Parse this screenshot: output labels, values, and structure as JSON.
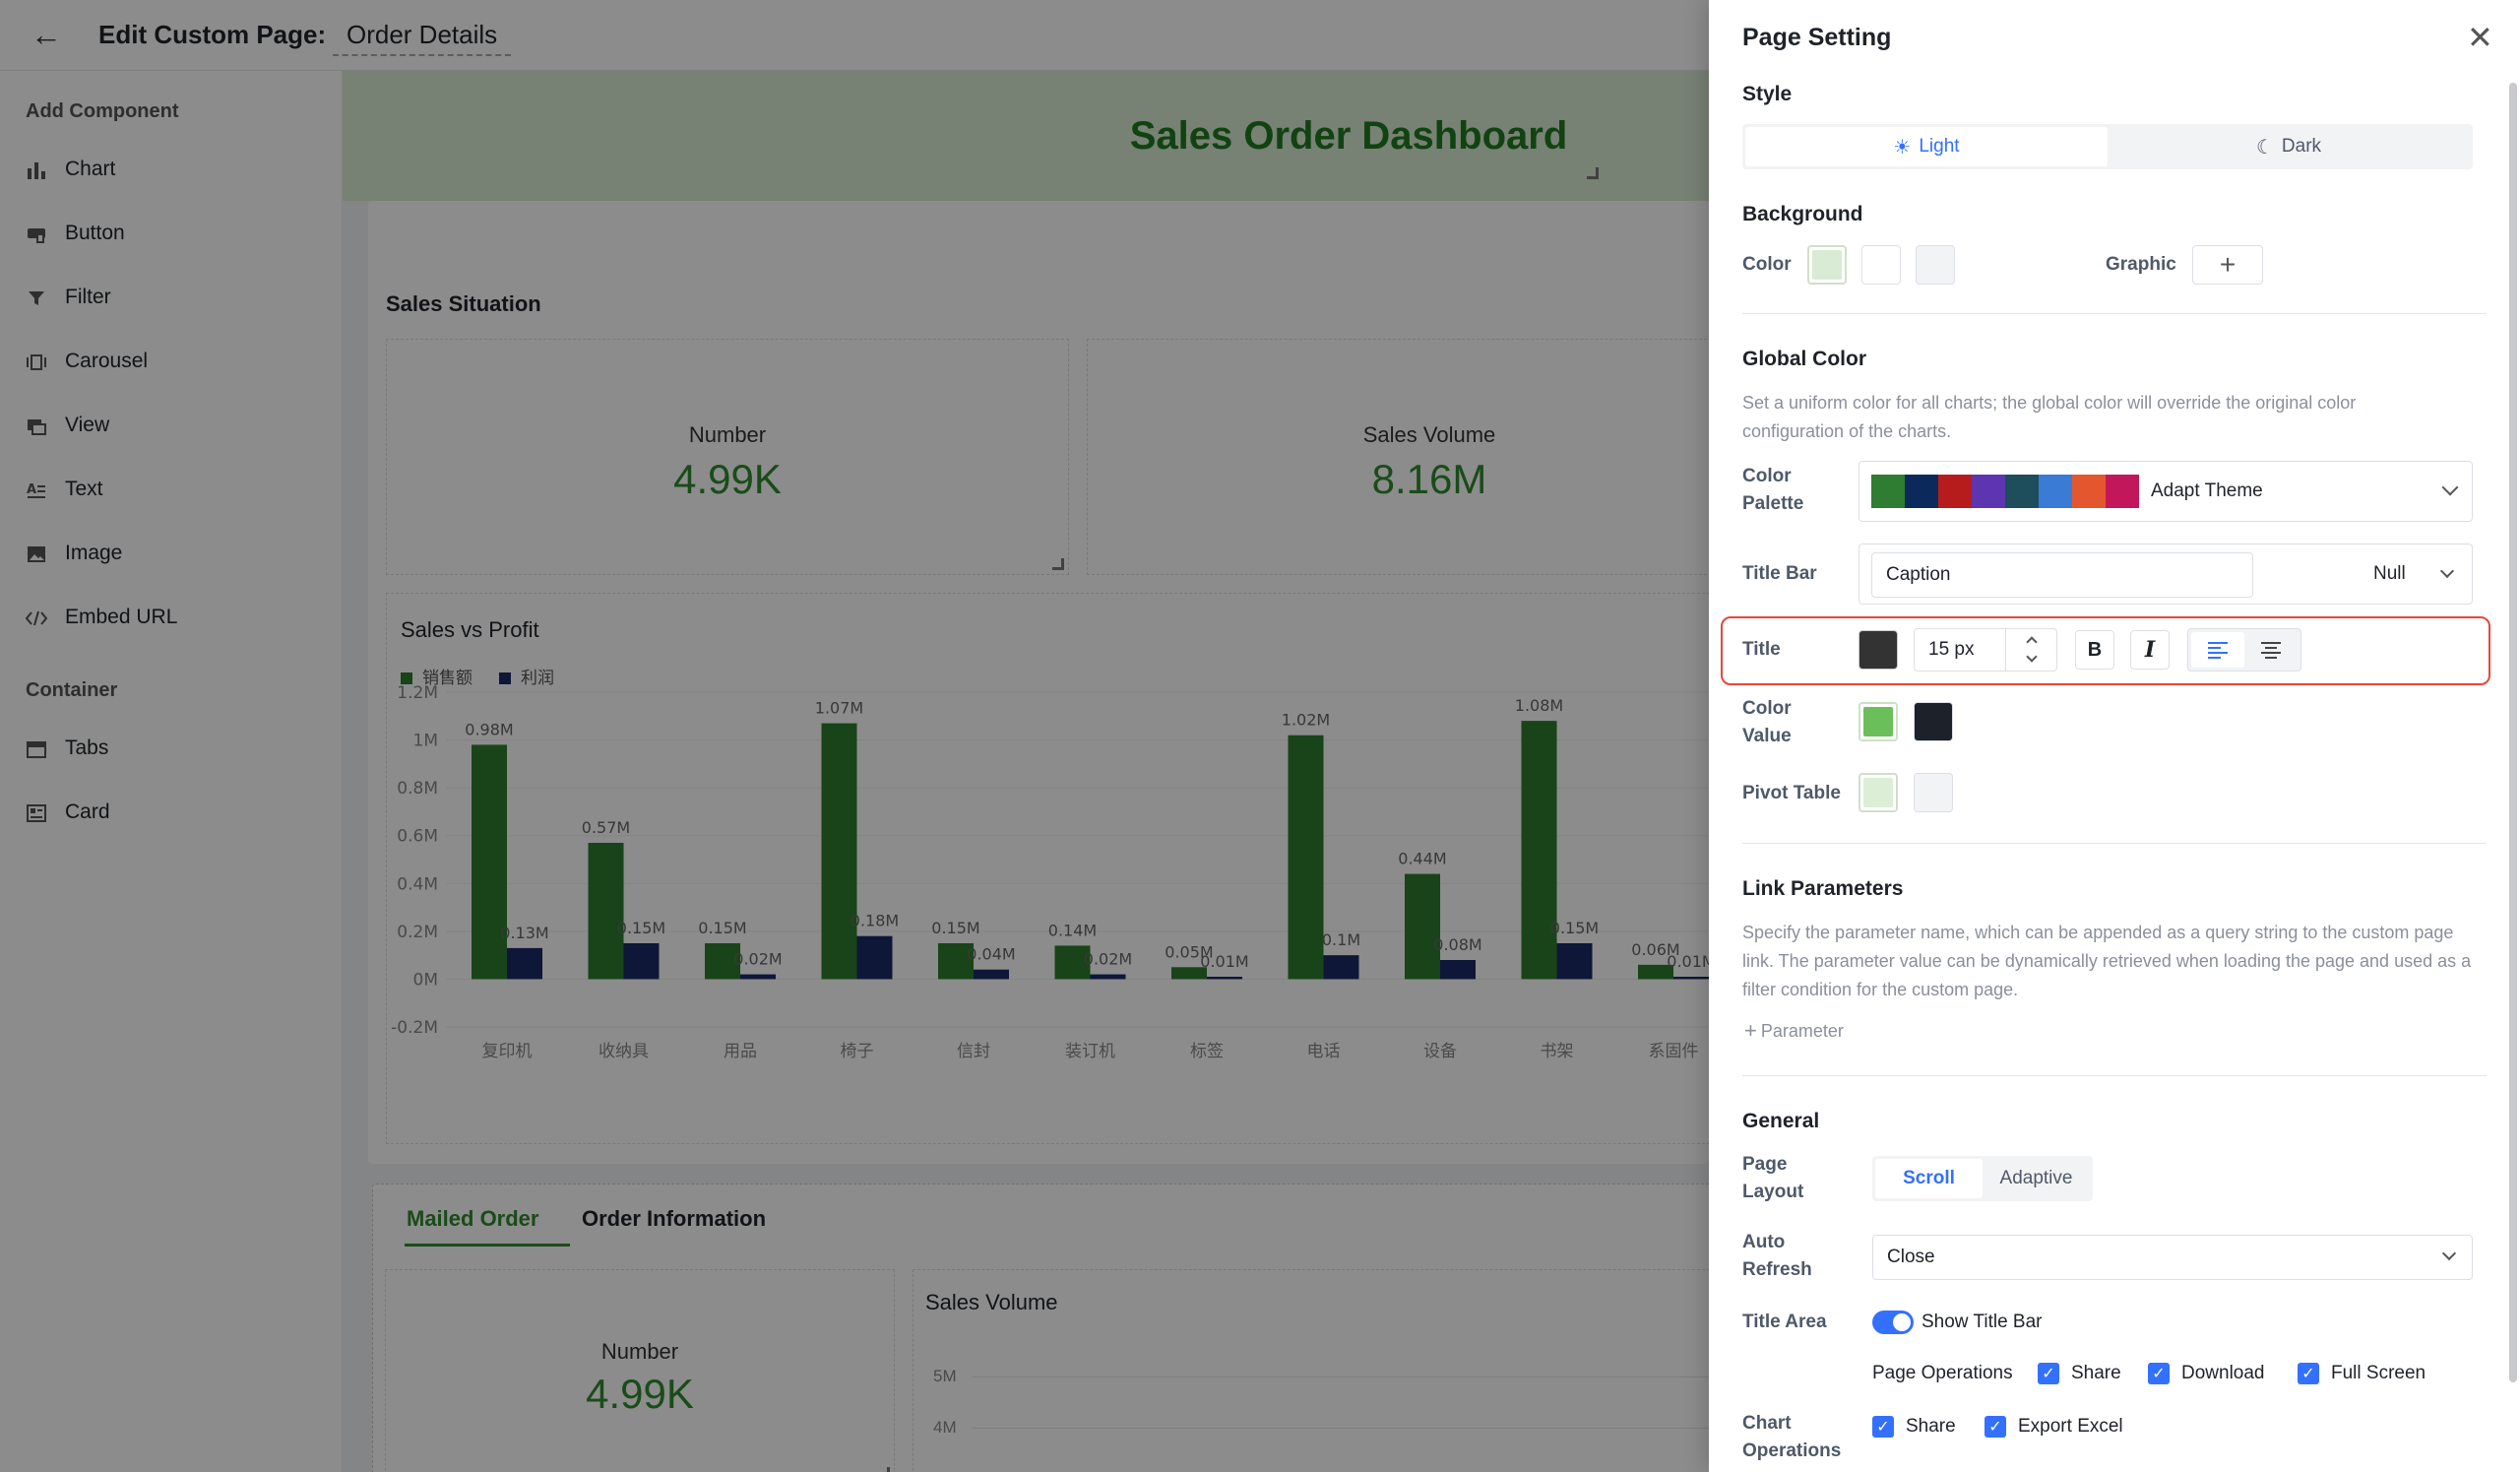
{
  "header": {
    "title": "Edit Custom Page:",
    "page_name": "Order Details"
  },
  "sidebar": {
    "add_component": "Add Component",
    "items": [
      "Chart",
      "Button",
      "Filter",
      "Carousel",
      "View",
      "Text",
      "Image",
      "Embed URL"
    ],
    "container": "Container",
    "container_items": [
      "Tabs",
      "Card"
    ]
  },
  "canvas": {
    "dashboard_title": "Sales Order Dashboard",
    "sales_situation": "Sales Situation",
    "kpi1": {
      "label": "Number",
      "value": "4.99K"
    },
    "kpi2": {
      "label": "Sales Volume",
      "value": "8.16M"
    },
    "chart_title": "Sales vs Profit",
    "tabs": [
      "Mailed Order",
      "Order Information"
    ],
    "kpi3": {
      "label": "Number",
      "value": "4.99K"
    },
    "sales_volume_title": "Sales Volume",
    "small_ticks": [
      "5M",
      "4M"
    ]
  },
  "chart_data": {
    "type": "bar",
    "title": "Sales vs Profit",
    "categories": [
      "复印机",
      "收纳具",
      "用品",
      "椅子",
      "信封",
      "装订机",
      "标签",
      "电话",
      "设备",
      "书架",
      "系固件"
    ],
    "series": [
      {
        "name": "销售额",
        "color": "#2e7d2e",
        "values": [
          0.98,
          0.57,
          0.15,
          1.07,
          0.15,
          0.14,
          0.05,
          1.02,
          0.44,
          1.08,
          0.06
        ],
        "labels": [
          "0.98M",
          "0.57M",
          "0.15M",
          "1.07M",
          "0.15M",
          "0.14M",
          "0.05M",
          "1.02M",
          "0.44M",
          "1.08M",
          "0.06M"
        ]
      },
      {
        "name": "利润",
        "color": "#1a2a66",
        "values": [
          0.13,
          0.15,
          0.02,
          0.18,
          0.04,
          0.02,
          0.01,
          0.1,
          0.08,
          0.15,
          0.01
        ],
        "labels": [
          "0.13M",
          "0.15M",
          "0.02M",
          "0.18M",
          "0.04M",
          "0.02M",
          "0.01M",
          "0.1M",
          "0.08M",
          "0.15M",
          "0.01M"
        ]
      }
    ],
    "yticks": [
      "1.2M",
      "1M",
      "0.8M",
      "0.6M",
      "0.4M",
      "0.2M",
      "0M",
      "-0.2M"
    ],
    "ylim": [
      -0.2,
      1.2
    ],
    "legend": "top-left",
    "grid": true
  },
  "drawer": {
    "title": "Page Setting",
    "style": {
      "label": "Style",
      "light": "Light",
      "dark": "Dark"
    },
    "background": {
      "label": "Background",
      "color": "Color",
      "graphic": "Graphic",
      "swatches": [
        "#d9ebd4",
        "#ffffff",
        "#f2f3f5"
      ]
    },
    "global_color": {
      "label": "Global Color",
      "desc": "Set a uniform color for all charts; the global color will override the original color configuration of the charts.",
      "palette_label": "Color Palette",
      "palette_colors": [
        "#2e7d32",
        "#0b2a5b",
        "#b71c1c",
        "#5e35b1",
        "#1e4d5c",
        "#3a7bd5",
        "#e4572e",
        "#c2185b"
      ],
      "palette_value": "Adapt Theme",
      "title_bar_label": "Title Bar",
      "title_bar_value": "Caption",
      "title_bar_option": "Null",
      "title_label": "Title",
      "title_color": "#333333",
      "font_size": "15 px",
      "bold": "B",
      "italic": "I",
      "color_value_label": "Color Value",
      "color_value_swatches": [
        "#6abf5b",
        "#1d2129"
      ],
      "pivot_label": "Pivot Table",
      "pivot_swatches": [
        "#dcefd6",
        "#f2f3f5"
      ]
    },
    "link": {
      "label": "Link Parameters",
      "desc": "Specify the parameter name, which can be appended as a query string to the custom page link. The parameter value can be dynamically retrieved when loading the page and used as a filter condition for the custom page.",
      "add": "Parameter"
    },
    "general": {
      "label": "General",
      "layout_label": "Page Layout",
      "scroll": "Scroll",
      "adaptive": "Adaptive",
      "refresh_label": "Auto Refresh",
      "refresh_value": "Close",
      "title_area_label": "Title Area",
      "show_title_bar": "Show Title Bar",
      "page_ops_label": "Page Operations",
      "page_ops": [
        "Share",
        "Download",
        "Full Screen"
      ],
      "chart_ops_label": "Chart Operations",
      "chart_ops": [
        "Share",
        "Export Excel"
      ]
    }
  }
}
